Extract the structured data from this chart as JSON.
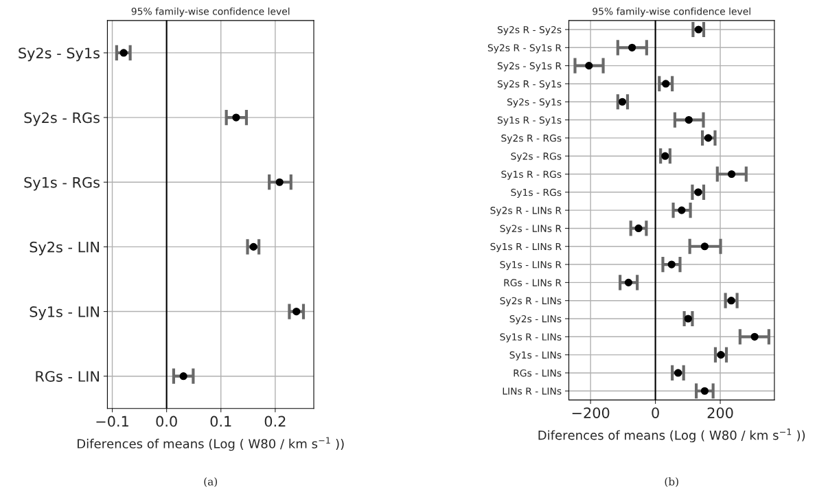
{
  "chart_data": [
    {
      "type": "scatter",
      "title": "95% family-wise confidence level",
      "xlabel": "Diferences of means (Log ( W80 / km s$^{−1}$ ))",
      "orientation": "horizontal",
      "categories": [
        "Sy2s - Sy1s",
        "Sy2s - RGs",
        "Sy1s - RGs",
        "Sy2s - LIN",
        "Sy1s - LIN",
        "RGs - LIN"
      ],
      "series": [
        {
          "color": "#000000",
          "values": [
            -0.079,
            0.128,
            0.208,
            0.16,
            0.239,
            0.031
          ],
          "errors": [
            [
              -0.092,
              -0.067
            ],
            [
              0.11,
              0.147
            ],
            [
              0.189,
              0.229
            ],
            [
              0.149,
              0.17
            ],
            [
              0.226,
              0.252
            ],
            [
              0.013,
              0.049
            ]
          ]
        }
      ],
      "xlim": [
        -0.109,
        0.271
      ],
      "xticks": [
        {
          "value": -0.1,
          "label": "−0.1"
        },
        {
          "value": 0.0,
          "label": "0.0"
        },
        {
          "value": 0.1,
          "label": "0.1"
        },
        {
          "value": 0.2,
          "label": "0.2"
        }
      ],
      "ref_lines": [
        {
          "axis": "x",
          "value": 0,
          "color": "#000000"
        }
      ],
      "grid": true,
      "marker": "circle",
      "annotations": [
        "(a)"
      ]
    },
    {
      "type": "scatter",
      "title": "95% family-wise confidence level",
      "xlabel": "Diferences of means (Log ( W80 / km s$^{−1}$ ))",
      "orientation": "horizontal",
      "categories": [
        "Sy2s R - Sy2s",
        "Sy2s R - Sy1s R",
        "Sy2s - Sy1s R",
        "Sy2s R - Sy1s",
        "Sy2s - Sy1s",
        "Sy1s R - Sy1s",
        "Sy2s R - RGs",
        "Sy2s - RGs",
        "Sy1s R - RGs",
        "Sy1s - RGs",
        "Sy2s R - LINs R",
        "Sy2s - LINs R",
        "Sy1s R - LINs R",
        "Sy1s - LINs R",
        "RGs - LINs R",
        "Sy2s R - LINs",
        "Sy2s - LINs",
        "Sy1s R - LINs",
        "Sy1s - LINs",
        "RGs - LINs",
        "LINs R - LINs"
      ],
      "series": [
        {
          "color": "#000000",
          "values": [
            133,
            -72,
            -205,
            32,
            -102,
            103,
            163,
            30,
            235,
            132,
            81,
            -52,
            152,
            50,
            -83,
            234,
            101,
            306,
            202,
            70,
            152
          ],
          "errors": [
            [
              116,
              149
            ],
            [
              -116,
              -27
            ],
            [
              -248,
              -161
            ],
            [
              12,
              52
            ],
            [
              -116,
              -86
            ],
            [
              60,
              148
            ],
            [
              145,
              184
            ],
            [
              16,
              45
            ],
            [
              191,
              280
            ],
            [
              114,
              149
            ],
            [
              55,
              108
            ],
            [
              -76,
              -28
            ],
            [
              106,
              201
            ],
            [
              23,
              76
            ],
            [
              -109,
              -56
            ],
            [
              216,
              252
            ],
            [
              89,
              114
            ],
            [
              261,
              350
            ],
            [
              185,
              219
            ],
            [
              52,
              87
            ],
            [
              126,
              178
            ]
          ]
        }
      ],
      "xlim": [
        -267,
        367
      ],
      "xticks": [
        {
          "value": -200,
          "label": "−200"
        },
        0,
        200
      ],
      "ref_lines": [
        {
          "axis": "x",
          "value": 0,
          "color": "#000000"
        }
      ],
      "grid": true,
      "marker": "circle",
      "annotations": [
        "(b)"
      ]
    }
  ]
}
